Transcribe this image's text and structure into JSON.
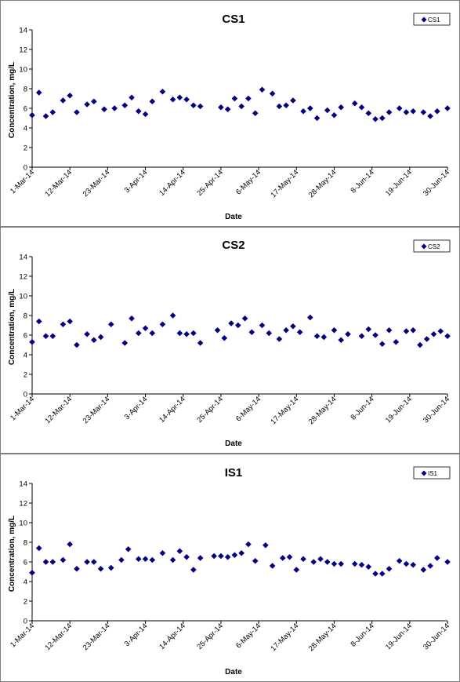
{
  "chart_data": [
    {
      "type": "scatter",
      "title": "CS1",
      "xlabel": "Date",
      "ylabel": "Concentration, mg/L",
      "ylim": [
        0,
        14
      ],
      "yticks": [
        "0",
        "2",
        "4",
        "6",
        "8",
        "10",
        "12",
        "14"
      ],
      "xlim": [
        "2014-03-01",
        "2014-06-30"
      ],
      "xticks": [
        "1-Mar-14",
        "12-Mar-14",
        "23-Mar-14",
        "3-Apr-14",
        "14-Apr-14",
        "25-Apr-14",
        "6-May-14",
        "17-May-14",
        "28-May-14",
        "8-Jun-14",
        "19-Jun-14",
        "30-Jun-14"
      ],
      "grid": false,
      "legend_position": "top-right",
      "marker_color": "#000080",
      "series": [
        {
          "name": "CS1",
          "x": [
            "2014-03-01",
            "2014-03-03",
            "2014-03-05",
            "2014-03-07",
            "2014-03-10",
            "2014-03-12",
            "2014-03-14",
            "2014-03-17",
            "2014-03-19",
            "2014-03-22",
            "2014-03-25",
            "2014-03-28",
            "2014-03-30",
            "2014-04-01",
            "2014-04-03",
            "2014-04-05",
            "2014-04-08",
            "2014-04-11",
            "2014-04-13",
            "2014-04-15",
            "2014-04-17",
            "2014-04-19",
            "2014-04-25",
            "2014-04-27",
            "2014-04-29",
            "2014-05-01",
            "2014-05-03",
            "2014-05-05",
            "2014-05-07",
            "2014-05-10",
            "2014-05-12",
            "2014-05-14",
            "2014-05-16",
            "2014-05-19",
            "2014-05-21",
            "2014-05-23",
            "2014-05-26",
            "2014-05-28",
            "2014-05-30",
            "2014-06-03",
            "2014-06-05",
            "2014-06-07",
            "2014-06-09",
            "2014-06-11",
            "2014-06-13",
            "2014-06-16",
            "2014-06-18",
            "2014-06-20",
            "2014-06-23",
            "2014-06-25",
            "2014-06-27",
            "2014-06-30"
          ],
          "y": [
            5.3,
            7.6,
            5.2,
            5.6,
            6.8,
            7.3,
            5.6,
            6.4,
            6.7,
            5.9,
            6.0,
            6.3,
            7.1,
            5.7,
            5.4,
            6.7,
            7.7,
            6.9,
            7.1,
            6.9,
            6.3,
            6.2,
            6.1,
            5.9,
            7.0,
            6.2,
            7.0,
            5.5,
            7.9,
            7.5,
            6.2,
            6.3,
            6.8,
            5.7,
            6.0,
            5.0,
            5.8,
            5.3,
            6.1,
            6.5,
            6.1,
            5.5,
            4.9,
            5.0,
            5.6,
            6.0,
            5.6,
            5.7,
            5.6,
            5.2,
            5.7,
            6.0
          ]
        }
      ]
    },
    {
      "type": "scatter",
      "title": "CS2",
      "xlabel": "Date",
      "ylabel": "Concentration, mg/L",
      "ylim": [
        0,
        14
      ],
      "yticks": [
        "0",
        "2",
        "4",
        "6",
        "8",
        "10",
        "12",
        "14"
      ],
      "xlim": [
        "2014-03-01",
        "2014-06-30"
      ],
      "xticks": [
        "1-Mar-14",
        "12-Mar-14",
        "23-Mar-14",
        "3-Apr-14",
        "14-Apr-14",
        "25-Apr-14",
        "6-May-14",
        "17-May-14",
        "28-May-14",
        "8-Jun-14",
        "19-Jun-14",
        "30-Jun-14"
      ],
      "grid": false,
      "legend_position": "top-right",
      "marker_color": "#000080",
      "series": [
        {
          "name": "CS2",
          "x": [
            "2014-03-01",
            "2014-03-03",
            "2014-03-05",
            "2014-03-07",
            "2014-03-10",
            "2014-03-12",
            "2014-03-14",
            "2014-03-17",
            "2014-03-19",
            "2014-03-21",
            "2014-03-24",
            "2014-03-28",
            "2014-03-30",
            "2014-04-01",
            "2014-04-03",
            "2014-04-05",
            "2014-04-08",
            "2014-04-11",
            "2014-04-13",
            "2014-04-15",
            "2014-04-17",
            "2014-04-19",
            "2014-04-24",
            "2014-04-26",
            "2014-04-28",
            "2014-04-30",
            "2014-05-02",
            "2014-05-04",
            "2014-05-07",
            "2014-05-09",
            "2014-05-12",
            "2014-05-14",
            "2014-05-16",
            "2014-05-18",
            "2014-05-21",
            "2014-05-23",
            "2014-05-25",
            "2014-05-28",
            "2014-05-30",
            "2014-06-01",
            "2014-06-05",
            "2014-06-07",
            "2014-06-09",
            "2014-06-11",
            "2014-06-13",
            "2014-06-15",
            "2014-06-18",
            "2014-06-20",
            "2014-06-22",
            "2014-06-24",
            "2014-06-26",
            "2014-06-28",
            "2014-06-30"
          ],
          "y": [
            5.3,
            7.4,
            5.9,
            5.9,
            7.1,
            7.4,
            5.0,
            6.1,
            5.5,
            5.8,
            7.1,
            5.2,
            7.7,
            6.2,
            6.7,
            6.2,
            7.1,
            8.0,
            6.2,
            6.1,
            6.2,
            5.2,
            6.5,
            5.7,
            7.2,
            7.0,
            7.7,
            6.3,
            7.0,
            6.2,
            5.6,
            6.5,
            6.9,
            6.3,
            7.8,
            5.9,
            5.8,
            6.5,
            5.5,
            6.1,
            5.9,
            6.6,
            6.0,
            5.1,
            6.5,
            5.3,
            6.4,
            6.5,
            5.0,
            5.6,
            6.1,
            6.4,
            5.9
          ]
        }
      ]
    },
    {
      "type": "scatter",
      "title": "IS1",
      "xlabel": "Date",
      "ylabel": "Concentration, mg/L",
      "ylim": [
        0,
        14
      ],
      "yticks": [
        "0",
        "2",
        "4",
        "6",
        "8",
        "10",
        "12",
        "14"
      ],
      "xlim": [
        "2014-03-01",
        "2014-06-30"
      ],
      "xticks": [
        "1-Mar-14",
        "12-Mar-14",
        "23-Mar-14",
        "3-Apr-14",
        "14-Apr-14",
        "25-Apr-14",
        "6-May-14",
        "17-May-14",
        "28-May-14",
        "8-Jun-14",
        "19-Jun-14",
        "30-Jun-14"
      ],
      "grid": false,
      "legend_position": "top-right",
      "marker_color": "#000080",
      "series": [
        {
          "name": "IS1",
          "x": [
            "2014-03-01",
            "2014-03-03",
            "2014-03-05",
            "2014-03-07",
            "2014-03-10",
            "2014-03-12",
            "2014-03-14",
            "2014-03-17",
            "2014-03-19",
            "2014-03-21",
            "2014-03-24",
            "2014-03-27",
            "2014-03-29",
            "2014-04-01",
            "2014-04-03",
            "2014-04-05",
            "2014-04-08",
            "2014-04-11",
            "2014-04-13",
            "2014-04-15",
            "2014-04-17",
            "2014-04-19",
            "2014-04-23",
            "2014-04-25",
            "2014-04-27",
            "2014-04-29",
            "2014-05-01",
            "2014-05-03",
            "2014-05-05",
            "2014-05-08",
            "2014-05-10",
            "2014-05-13",
            "2014-05-15",
            "2014-05-17",
            "2014-05-19",
            "2014-05-22",
            "2014-05-24",
            "2014-05-26",
            "2014-05-28",
            "2014-05-30",
            "2014-06-03",
            "2014-06-05",
            "2014-06-07",
            "2014-06-09",
            "2014-06-11",
            "2014-06-13",
            "2014-06-16",
            "2014-06-18",
            "2014-06-20",
            "2014-06-23",
            "2014-06-25",
            "2014-06-27",
            "2014-06-30"
          ],
          "y": [
            4.9,
            7.4,
            6.0,
            6.0,
            6.2,
            7.8,
            5.3,
            6.0,
            6.0,
            5.3,
            5.4,
            6.2,
            7.3,
            6.3,
            6.3,
            6.2,
            6.9,
            6.2,
            7.1,
            6.5,
            5.2,
            6.4,
            6.6,
            6.6,
            6.5,
            6.7,
            6.9,
            7.8,
            6.1,
            7.7,
            5.6,
            6.4,
            6.5,
            5.2,
            6.3,
            6.0,
            6.3,
            6.0,
            5.8,
            5.8,
            5.8,
            5.7,
            5.5,
            4.8,
            4.8,
            5.3,
            6.1,
            5.8,
            5.7,
            5.2,
            5.6,
            6.4,
            6.0
          ]
        }
      ]
    }
  ]
}
